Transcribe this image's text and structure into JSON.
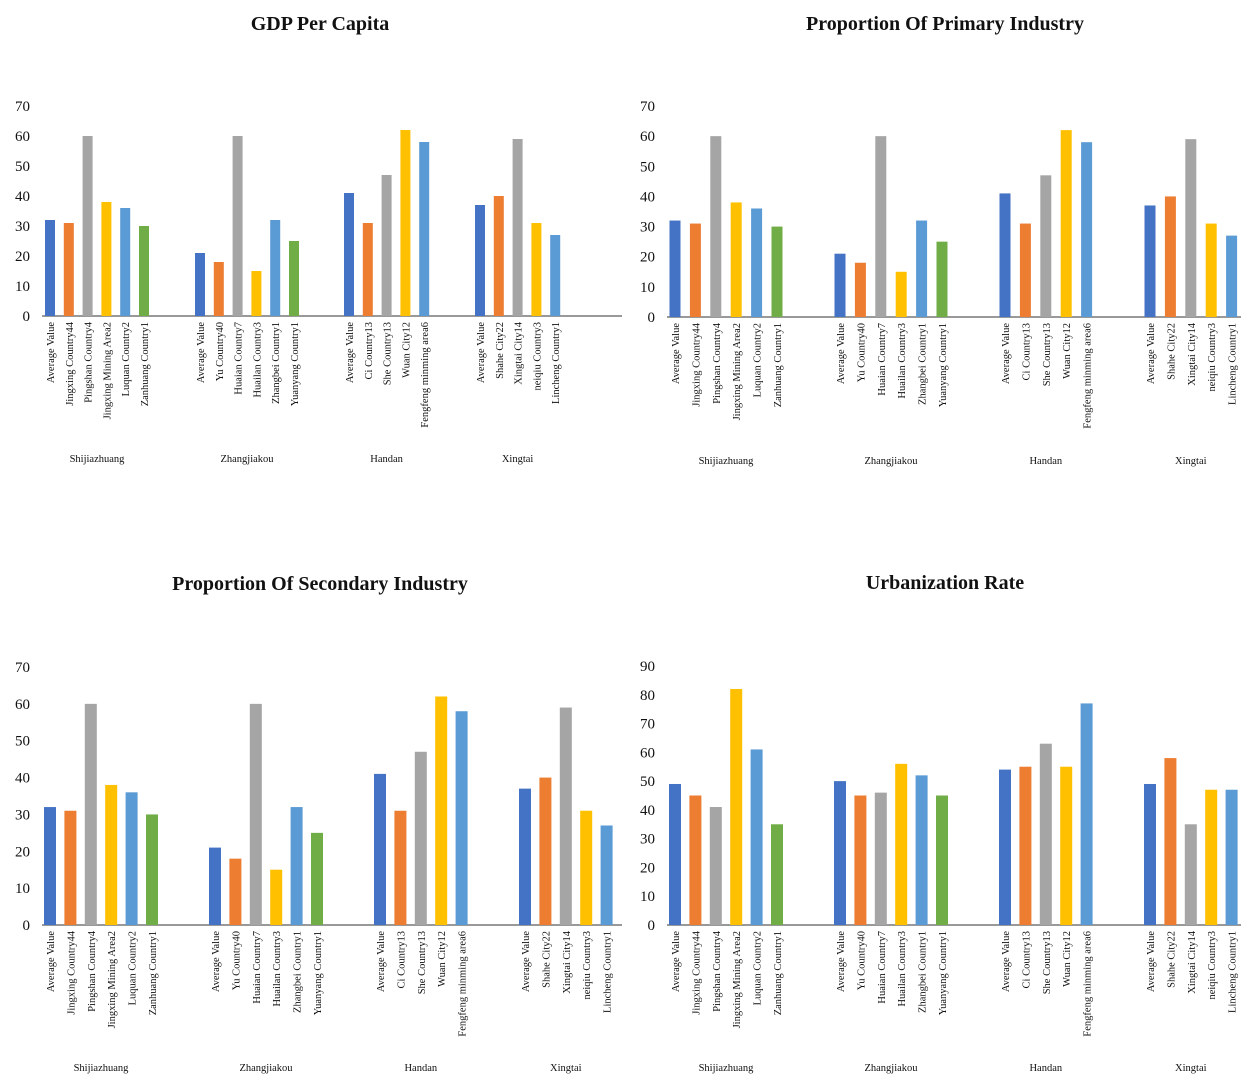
{
  "chart_data": [
    {
      "type": "bar",
      "title": "GDP Per Capita",
      "ylim": [
        0,
        70
      ],
      "yticks": [
        0,
        10,
        20,
        30,
        40,
        50,
        60,
        70
      ],
      "grid": false,
      "groups": [
        {
          "name": "Shijiazhuang",
          "categories": [
            "Average Value",
            "Jingxing Country44",
            "Pingshan Country4",
            "Jingxing Mining  Area2",
            "Luquan Country2",
            "Zanhuang Country1"
          ],
          "values": [
            32,
            31,
            60,
            38,
            36,
            30
          ]
        },
        {
          "name": "Zhangjiakou",
          "categories": [
            "Average Value",
            "Yu Country40",
            "Huaian Country7",
            "Huailan Country3",
            "Zhangbei Country1",
            "Yuanyang Country1"
          ],
          "values": [
            21,
            18,
            60,
            15,
            32,
            25
          ]
        },
        {
          "name": "Handan",
          "categories": [
            "Average Value",
            "Ci Country13",
            "She Country13",
            "Wuan City12",
            "Fengfeng minming area6"
          ],
          "values": [
            41,
            31,
            47,
            62,
            58
          ]
        },
        {
          "name": "Xingtai",
          "categories": [
            "Average Value",
            "Shahe City22",
            "Xingtai City14",
            "neiqiu Country3",
            "Lincheng Country1"
          ],
          "values": [
            37,
            40,
            59,
            31,
            27
          ]
        }
      ]
    },
    {
      "type": "bar",
      "title": "Proportion Of Primary Industry",
      "ylim": [
        0,
        70
      ],
      "yticks": [
        0,
        10,
        20,
        30,
        40,
        50,
        60,
        70
      ],
      "grid": false,
      "groups": [
        {
          "name": "Shijiazhuang",
          "categories": [
            "Average Value",
            "Jingxing Country44",
            "Pingshan Country4",
            "Jingxing Mining  Area2",
            "Luquan Country2",
            "Zanhuang Country1"
          ],
          "values": [
            32,
            31,
            60,
            38,
            36,
            30
          ]
        },
        {
          "name": "Zhangjiakou",
          "categories": [
            "Average Value",
            "Yu Country40",
            "Huaian Country7",
            "Huailan Country3",
            "Zhangbei Country1",
            "Yuanyang Country1"
          ],
          "values": [
            21,
            18,
            60,
            15,
            32,
            25
          ]
        },
        {
          "name": "Handan",
          "categories": [
            "Average Value",
            "Ci Country13",
            "She Country13",
            "Wuan City12",
            "Fengfeng minming area6"
          ],
          "values": [
            41,
            31,
            47,
            62,
            58
          ]
        },
        {
          "name": "Xingtai",
          "categories": [
            "Average Value",
            "Shahe City22",
            "Xingtai City14",
            "neiqiu Country3",
            "Lincheng Country1"
          ],
          "values": [
            37,
            40,
            59,
            31,
            27
          ]
        }
      ]
    },
    {
      "type": "bar",
      "title": "Proportion Of Secondary Industry",
      "ylim": [
        0,
        70
      ],
      "yticks": [
        0,
        10,
        20,
        30,
        40,
        50,
        60,
        70
      ],
      "grid": false,
      "groups": [
        {
          "name": "Shijiazhuang",
          "categories": [
            "Average Value",
            "Jingxing Country44",
            "Pingshan Country4",
            "Jingxing Mining  Area2",
            "Luquan Country2",
            "Zanhuang Country1"
          ],
          "values": [
            32,
            31,
            60,
            38,
            36,
            30
          ]
        },
        {
          "name": "Zhangjiakou",
          "categories": [
            "Average Value",
            "Yu Country40",
            "Huaian Country7",
            "Huailan Country3",
            "Zhangbei Country1",
            "Yuanyang Country1"
          ],
          "values": [
            21,
            18,
            60,
            15,
            32,
            25
          ]
        },
        {
          "name": "Handan",
          "categories": [
            "Average Value",
            "Ci Country13",
            "She Country13",
            "Wuan City12",
            "Fengfeng minming area6"
          ],
          "values": [
            41,
            31,
            47,
            62,
            58
          ]
        },
        {
          "name": "Xingtai",
          "categories": [
            "Average Value",
            "Shahe City22",
            "Xingtai City14",
            "neiqiu Country3",
            "Lincheng Country1"
          ],
          "values": [
            37,
            40,
            59,
            31,
            27
          ]
        }
      ]
    },
    {
      "type": "bar",
      "title": "Urbanization Rate",
      "ylim": [
        0,
        90
      ],
      "yticks": [
        0,
        10,
        20,
        30,
        40,
        50,
        60,
        70,
        80,
        90
      ],
      "grid": false,
      "groups": [
        {
          "name": "Shijiazhuang",
          "categories": [
            "Average Value",
            "Jingxing Country44",
            "Pingshan Country4",
            "Jingxing Mining  Area2",
            "Luquan Country2",
            "Zanhuang Country1"
          ],
          "values": [
            49,
            45,
            41,
            82,
            61,
            35
          ]
        },
        {
          "name": "Zhangjiakou",
          "categories": [
            "Average Value",
            "Yu Country40",
            "Huaian Country7",
            "Huailan Country3",
            "Zhangbei Country1",
            "Yuanyang Country1"
          ],
          "values": [
            50,
            45,
            46,
            56,
            52,
            45
          ]
        },
        {
          "name": "Handan",
          "categories": [
            "Average Value",
            "Ci Country13",
            "She Country13",
            "Wuan City12",
            "Fengfeng minming area6"
          ],
          "values": [
            54,
            55,
            63,
            55,
            77
          ]
        },
        {
          "name": "Xingtai",
          "categories": [
            "Average Value",
            "Shahe City22",
            "Xingtai City14",
            "neiqiu Country3",
            "Lincheng Country1"
          ],
          "values": [
            49,
            58,
            35,
            47,
            47
          ]
        }
      ]
    }
  ],
  "colors": {
    "bar_sequence": [
      "#4472C4",
      "#ED7D31",
      "#A5A5A5",
      "#FFC000",
      "#5B9BD5",
      "#70AD47"
    ]
  }
}
